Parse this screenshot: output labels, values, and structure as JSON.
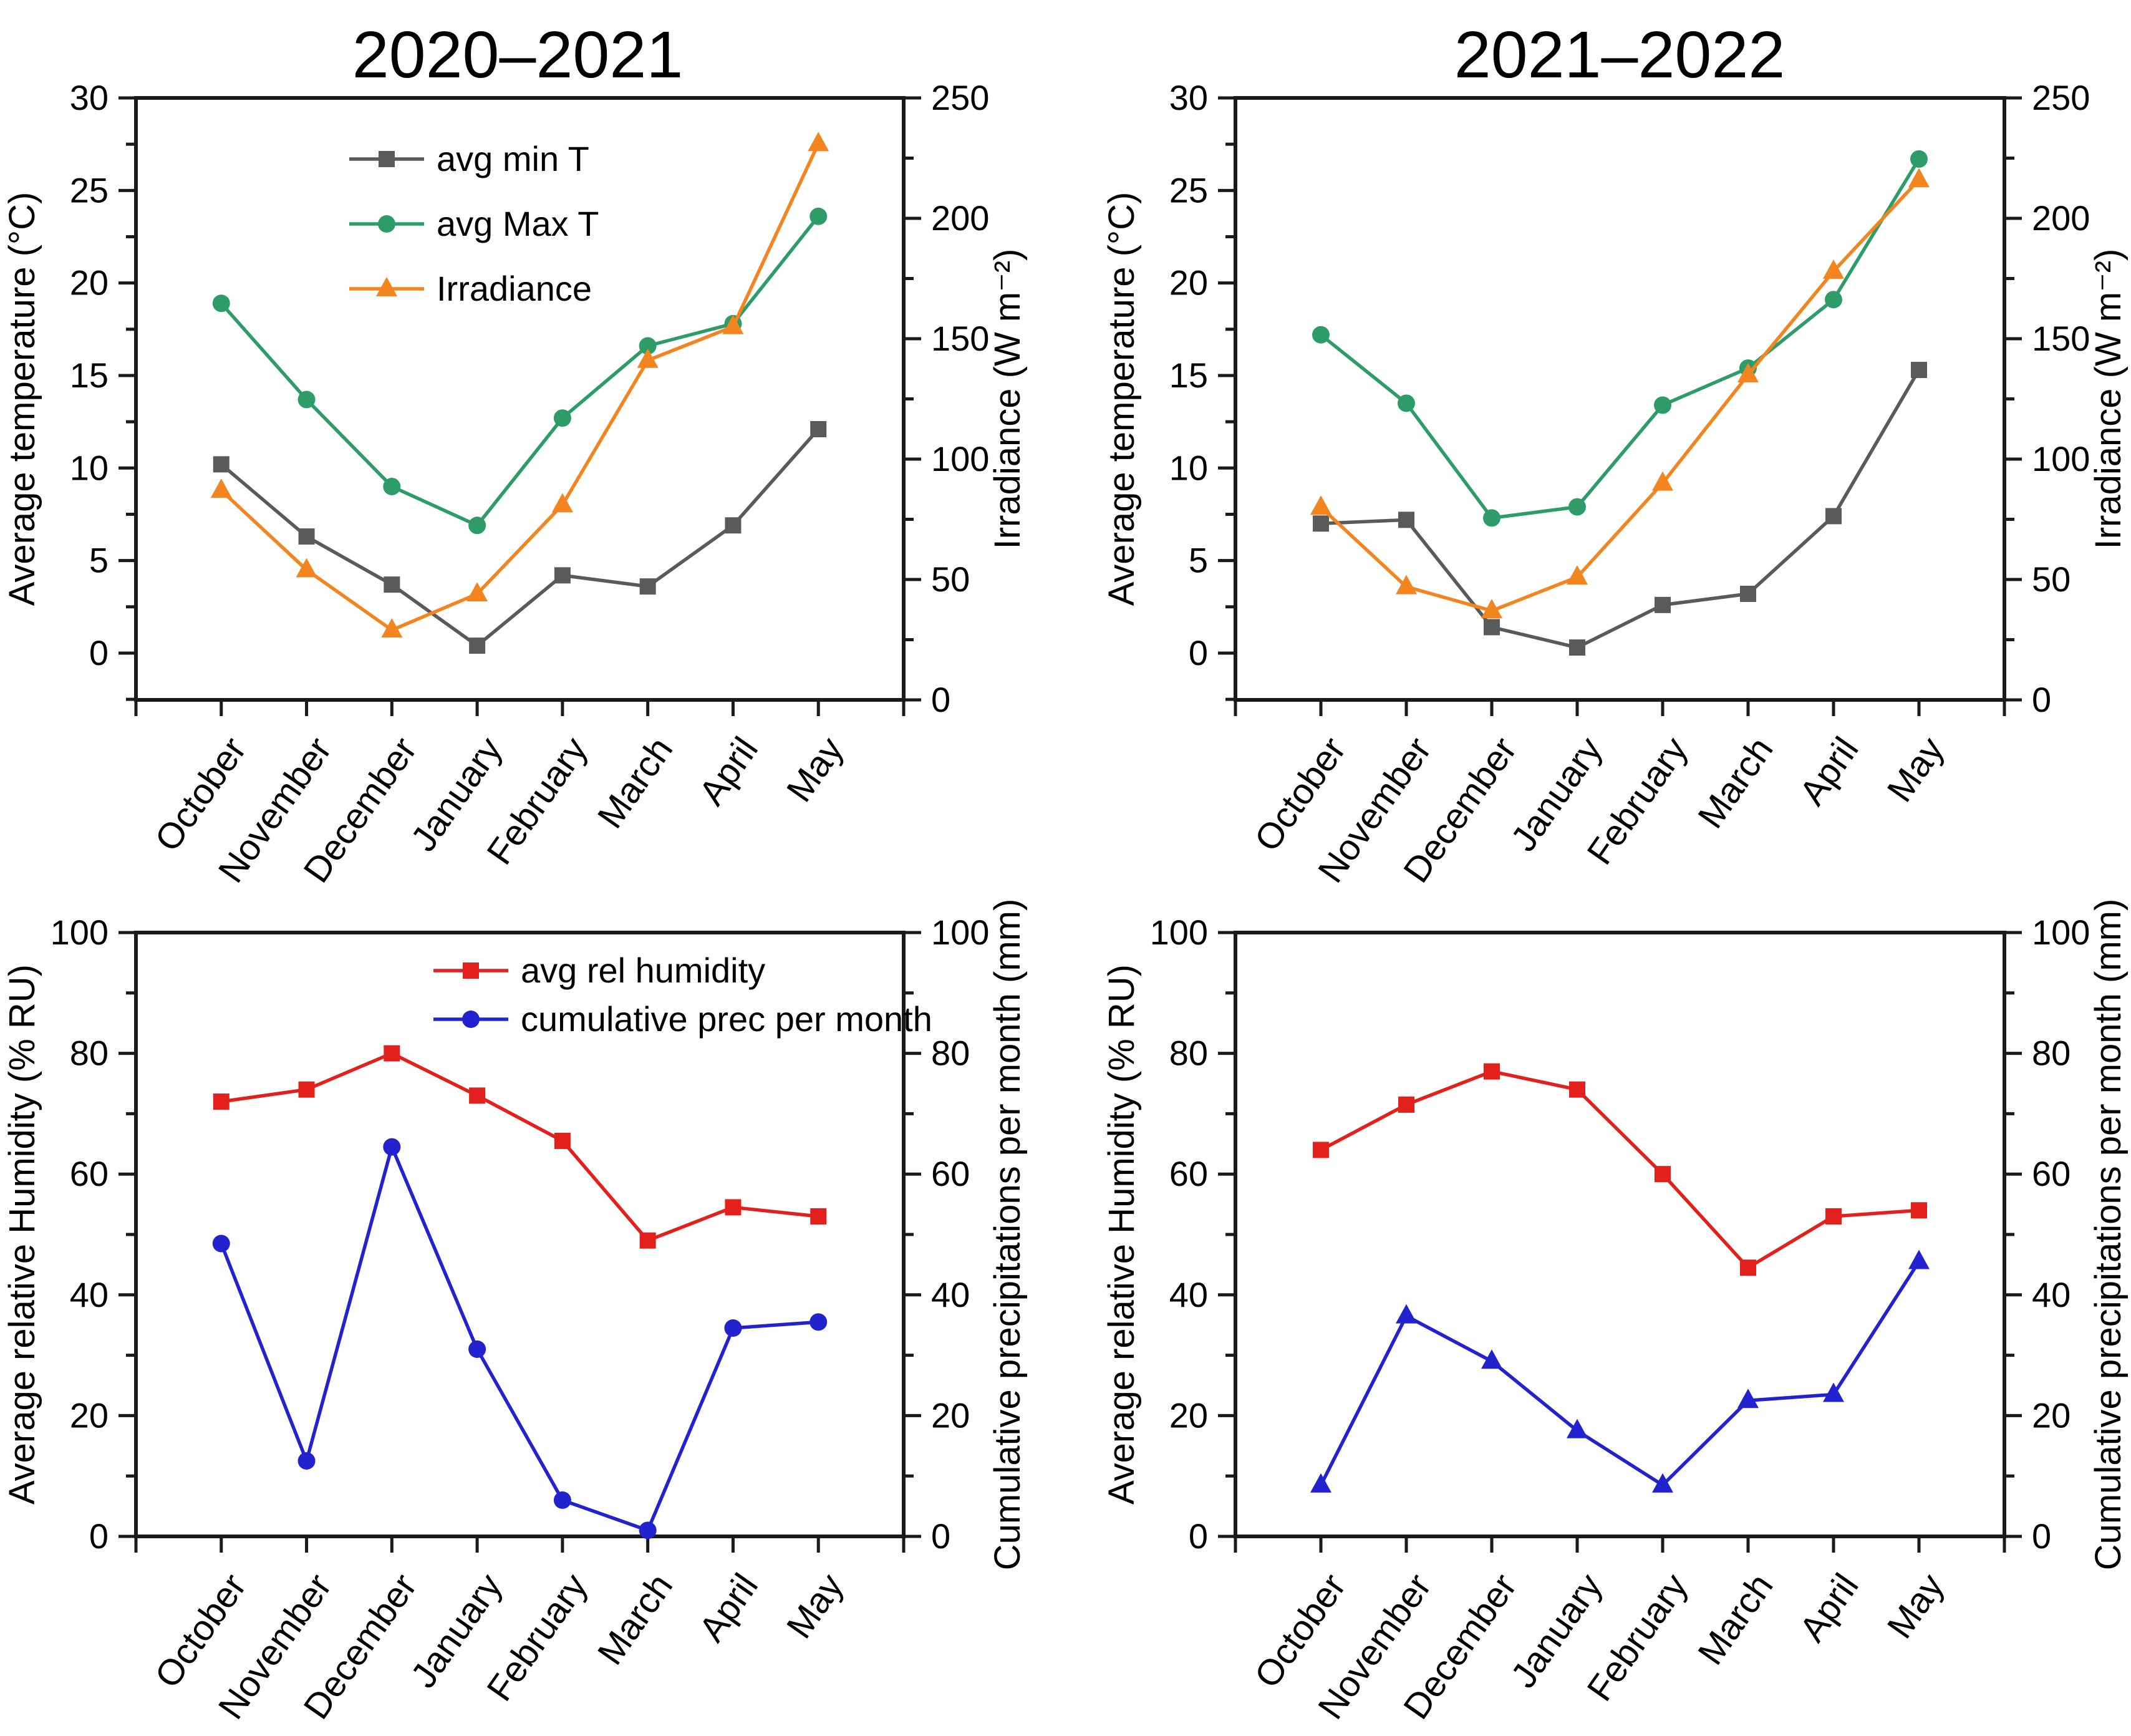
{
  "chart_data": [
    {
      "id": "temp-irradiance-2020-2021",
      "type": "line",
      "title": "2020–2021",
      "categories": [
        "October",
        "November",
        "December",
        "January",
        "February",
        "March",
        "April",
        "May"
      ],
      "left_axis": {
        "label": "Average temperature (°C)",
        "min": -2.53,
        "max": 30,
        "major_ticks": [
          0,
          5,
          10,
          15,
          20,
          25,
          30
        ],
        "minor_step": 2.5
      },
      "right_axis": {
        "label": "Irradiance (W m⁻²)",
        "min": 0,
        "max": 250,
        "major_ticks": [
          0,
          50,
          100,
          150,
          200,
          250
        ],
        "minor_step": 25
      },
      "legend": {
        "visible": true,
        "position": "inside-top-left"
      },
      "grid": false,
      "x_tick_rotation": -55,
      "series": [
        {
          "name": "avg min T",
          "axis": "left",
          "marker": "square",
          "color": "#5a5a5a",
          "values": [
            10.2,
            6.3,
            3.7,
            0.4,
            4.2,
            3.6,
            6.9,
            12.1
          ]
        },
        {
          "name": "avg Max T",
          "axis": "left",
          "marker": "circle",
          "color": "#2e9c68",
          "values": [
            18.9,
            13.7,
            9.0,
            6.9,
            12.7,
            16.6,
            17.8,
            23.6
          ]
        },
        {
          "name": "Irradiance",
          "axis": "right",
          "marker": "triangle",
          "color": "#f28520",
          "values": [
            87,
            54,
            29,
            44,
            81,
            141,
            155,
            231
          ]
        }
      ]
    },
    {
      "id": "temp-irradiance-2021-2022",
      "type": "line",
      "title": "2021–2022",
      "categories": [
        "October",
        "November",
        "December",
        "January",
        "February",
        "March",
        "April",
        "May"
      ],
      "left_axis": {
        "label": "Average temperature (°C)",
        "min": -2.53,
        "max": 30,
        "major_ticks": [
          0,
          5,
          10,
          15,
          20,
          25,
          30
        ],
        "minor_step": 2.5
      },
      "right_axis": {
        "label": "Irradiance (W m⁻²)",
        "min": 0,
        "max": 250,
        "major_ticks": [
          0,
          50,
          100,
          150,
          200,
          250
        ],
        "minor_step": 25
      },
      "legend": {
        "visible": false
      },
      "grid": false,
      "x_tick_rotation": -55,
      "series": [
        {
          "name": "avg min T",
          "axis": "left",
          "marker": "square",
          "color": "#5a5a5a",
          "values": [
            7.0,
            7.2,
            1.4,
            0.3,
            2.6,
            3.2,
            7.4,
            15.3
          ]
        },
        {
          "name": "avg Max T",
          "axis": "left",
          "marker": "circle",
          "color": "#2e9c68",
          "values": [
            17.2,
            13.5,
            7.3,
            7.9,
            13.4,
            15.4,
            19.1,
            26.7
          ]
        },
        {
          "name": "Irradiance",
          "axis": "right",
          "marker": "triangle",
          "color": "#f28520",
          "values": [
            80,
            47,
            37,
            51,
            90,
            135,
            178,
            216
          ]
        }
      ]
    },
    {
      "id": "humidity-precip-2020-2021",
      "type": "line",
      "categories": [
        "October",
        "November",
        "December",
        "January",
        "February",
        "March",
        "April",
        "May"
      ],
      "left_axis": {
        "label": "Average relative Humidity (% RU)",
        "min": 0,
        "max": 100,
        "major_ticks": [
          0,
          20,
          40,
          60,
          80,
          100
        ],
        "minor_step": 10
      },
      "right_axis": {
        "label": "Cumulative precipitations per month (mm)",
        "min": 0,
        "max": 100,
        "major_ticks": [
          0,
          20,
          40,
          60,
          80,
          100
        ],
        "minor_step": 10
      },
      "legend": {
        "visible": true,
        "position": "inside-top-center"
      },
      "grid": false,
      "x_tick_rotation": -55,
      "series": [
        {
          "name": "avg rel humidity",
          "axis": "left",
          "marker": "square",
          "color": "#e2201c",
          "values": [
            72,
            74,
            80,
            73,
            65.5,
            49,
            54.5,
            53
          ]
        },
        {
          "name": "cumulative prec per month",
          "axis": "right",
          "marker": "circle",
          "color": "#2222cf",
          "values": [
            48.5,
            12.5,
            64.5,
            31,
            6,
            1,
            34.5,
            35.5
          ]
        }
      ]
    },
    {
      "id": "humidity-precip-2021-2022",
      "type": "line",
      "categories": [
        "October",
        "November",
        "December",
        "January",
        "February",
        "March",
        "April",
        "May"
      ],
      "left_axis": {
        "label": "Average relative Humidity (% RU)",
        "min": 0,
        "max": 100,
        "major_ticks": [
          0,
          20,
          40,
          60,
          80,
          100
        ],
        "minor_step": 10
      },
      "right_axis": {
        "label": "Cumulative precipitations per month (mm)",
        "min": 0,
        "max": 100,
        "major_ticks": [
          0,
          20,
          40,
          60,
          80,
          100
        ],
        "minor_step": 10
      },
      "legend": {
        "visible": false
      },
      "grid": false,
      "x_tick_rotation": -55,
      "series": [
        {
          "name": "avg rel humidity",
          "axis": "left",
          "marker": "square",
          "color": "#e2201c",
          "values": [
            64,
            71.5,
            77,
            74,
            60,
            44.5,
            53,
            54
          ]
        },
        {
          "name": "cumulative prec per month",
          "axis": "right",
          "marker": "triangle",
          "color": "#2222cf",
          "values": [
            8.5,
            36.5,
            29,
            17.5,
            8.5,
            22.5,
            23.5,
            45.5
          ]
        }
      ]
    }
  ]
}
